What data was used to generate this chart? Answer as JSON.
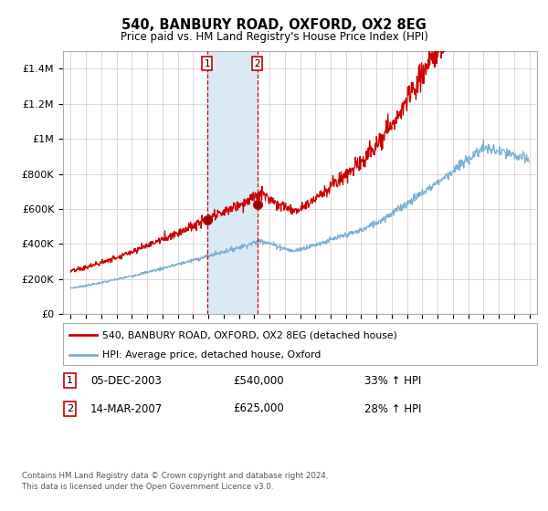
{
  "title": "540, BANBURY ROAD, OXFORD, OX2 8EG",
  "subtitle": "Price paid vs. HM Land Registry's House Price Index (HPI)",
  "legend_line1": "540, BANBURY ROAD, OXFORD, OX2 8EG (detached house)",
  "legend_line2": "HPI: Average price, detached house, Oxford",
  "footnote1": "Contains HM Land Registry data © Crown copyright and database right 2024.",
  "footnote2": "This data is licensed under the Open Government Licence v3.0.",
  "transaction1_date": "05-DEC-2003",
  "transaction1_price": "£540,000",
  "transaction1_hpi": "33% ↑ HPI",
  "transaction2_date": "14-MAR-2007",
  "transaction2_price": "£625,000",
  "transaction2_hpi": "28% ↑ HPI",
  "transaction1_x": 2003.92,
  "transaction2_x": 2007.21,
  "transaction1_y": 540000,
  "transaction2_y": 625000,
  "line_color_red": "#cc0000",
  "line_color_blue": "#7ab0d4",
  "shade_color": "#daeaf5",
  "vline_color": "#cc0000",
  "ylim_min": 0,
  "ylim_max": 1500000,
  "yticks": [
    0,
    200000,
    400000,
    600000,
    800000,
    1000000,
    1200000,
    1400000
  ],
  "ytick_labels": [
    "£0",
    "£200K",
    "£400K",
    "£600K",
    "£800K",
    "£1M",
    "£1.2M",
    "£1.4M"
  ],
  "xlim_min": 1994.5,
  "xlim_max": 2025.5,
  "background_color": "#ffffff",
  "plot_bg_color": "#ffffff",
  "grid_color": "#cccccc"
}
